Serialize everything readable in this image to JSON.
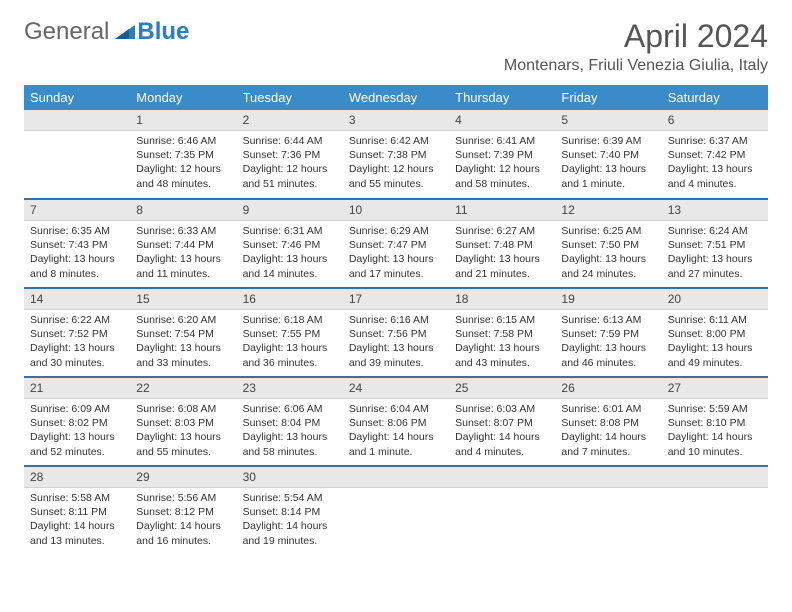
{
  "logo": {
    "text1": "General",
    "text2": "Blue"
  },
  "title": "April 2024",
  "location": "Montenars, Friuli Venezia Giulia, Italy",
  "colors": {
    "header_bg": "#3a8bc9",
    "header_fg": "#ffffff",
    "daynum_bg": "#e8e8e8",
    "sep": "#3a6fa5",
    "logo_gray": "#666666",
    "logo_blue": "#2a7fbf"
  },
  "weekdays": [
    "Sunday",
    "Monday",
    "Tuesday",
    "Wednesday",
    "Thursday",
    "Friday",
    "Saturday"
  ],
  "weeks": [
    [
      null,
      {
        "n": "1",
        "sr": "6:46 AM",
        "ss": "7:35 PM",
        "dl": "12 hours and 48 minutes."
      },
      {
        "n": "2",
        "sr": "6:44 AM",
        "ss": "7:36 PM",
        "dl": "12 hours and 51 minutes."
      },
      {
        "n": "3",
        "sr": "6:42 AM",
        "ss": "7:38 PM",
        "dl": "12 hours and 55 minutes."
      },
      {
        "n": "4",
        "sr": "6:41 AM",
        "ss": "7:39 PM",
        "dl": "12 hours and 58 minutes."
      },
      {
        "n": "5",
        "sr": "6:39 AM",
        "ss": "7:40 PM",
        "dl": "13 hours and 1 minute."
      },
      {
        "n": "6",
        "sr": "6:37 AM",
        "ss": "7:42 PM",
        "dl": "13 hours and 4 minutes."
      }
    ],
    [
      {
        "n": "7",
        "sr": "6:35 AM",
        "ss": "7:43 PM",
        "dl": "13 hours and 8 minutes."
      },
      {
        "n": "8",
        "sr": "6:33 AM",
        "ss": "7:44 PM",
        "dl": "13 hours and 11 minutes."
      },
      {
        "n": "9",
        "sr": "6:31 AM",
        "ss": "7:46 PM",
        "dl": "13 hours and 14 minutes."
      },
      {
        "n": "10",
        "sr": "6:29 AM",
        "ss": "7:47 PM",
        "dl": "13 hours and 17 minutes."
      },
      {
        "n": "11",
        "sr": "6:27 AM",
        "ss": "7:48 PM",
        "dl": "13 hours and 21 minutes."
      },
      {
        "n": "12",
        "sr": "6:25 AM",
        "ss": "7:50 PM",
        "dl": "13 hours and 24 minutes."
      },
      {
        "n": "13",
        "sr": "6:24 AM",
        "ss": "7:51 PM",
        "dl": "13 hours and 27 minutes."
      }
    ],
    [
      {
        "n": "14",
        "sr": "6:22 AM",
        "ss": "7:52 PM",
        "dl": "13 hours and 30 minutes."
      },
      {
        "n": "15",
        "sr": "6:20 AM",
        "ss": "7:54 PM",
        "dl": "13 hours and 33 minutes."
      },
      {
        "n": "16",
        "sr": "6:18 AM",
        "ss": "7:55 PM",
        "dl": "13 hours and 36 minutes."
      },
      {
        "n": "17",
        "sr": "6:16 AM",
        "ss": "7:56 PM",
        "dl": "13 hours and 39 minutes."
      },
      {
        "n": "18",
        "sr": "6:15 AM",
        "ss": "7:58 PM",
        "dl": "13 hours and 43 minutes."
      },
      {
        "n": "19",
        "sr": "6:13 AM",
        "ss": "7:59 PM",
        "dl": "13 hours and 46 minutes."
      },
      {
        "n": "20",
        "sr": "6:11 AM",
        "ss": "8:00 PM",
        "dl": "13 hours and 49 minutes."
      }
    ],
    [
      {
        "n": "21",
        "sr": "6:09 AM",
        "ss": "8:02 PM",
        "dl": "13 hours and 52 minutes."
      },
      {
        "n": "22",
        "sr": "6:08 AM",
        "ss": "8:03 PM",
        "dl": "13 hours and 55 minutes."
      },
      {
        "n": "23",
        "sr": "6:06 AM",
        "ss": "8:04 PM",
        "dl": "13 hours and 58 minutes."
      },
      {
        "n": "24",
        "sr": "6:04 AM",
        "ss": "8:06 PM",
        "dl": "14 hours and 1 minute."
      },
      {
        "n": "25",
        "sr": "6:03 AM",
        "ss": "8:07 PM",
        "dl": "14 hours and 4 minutes."
      },
      {
        "n": "26",
        "sr": "6:01 AM",
        "ss": "8:08 PM",
        "dl": "14 hours and 7 minutes."
      },
      {
        "n": "27",
        "sr": "5:59 AM",
        "ss": "8:10 PM",
        "dl": "14 hours and 10 minutes."
      }
    ],
    [
      {
        "n": "28",
        "sr": "5:58 AM",
        "ss": "8:11 PM",
        "dl": "14 hours and 13 minutes."
      },
      {
        "n": "29",
        "sr": "5:56 AM",
        "ss": "8:12 PM",
        "dl": "14 hours and 16 minutes."
      },
      {
        "n": "30",
        "sr": "5:54 AM",
        "ss": "8:14 PM",
        "dl": "14 hours and 19 minutes."
      },
      null,
      null,
      null,
      null
    ]
  ],
  "labels": {
    "sunrise": "Sunrise:",
    "sunset": "Sunset:",
    "daylight": "Daylight:"
  }
}
